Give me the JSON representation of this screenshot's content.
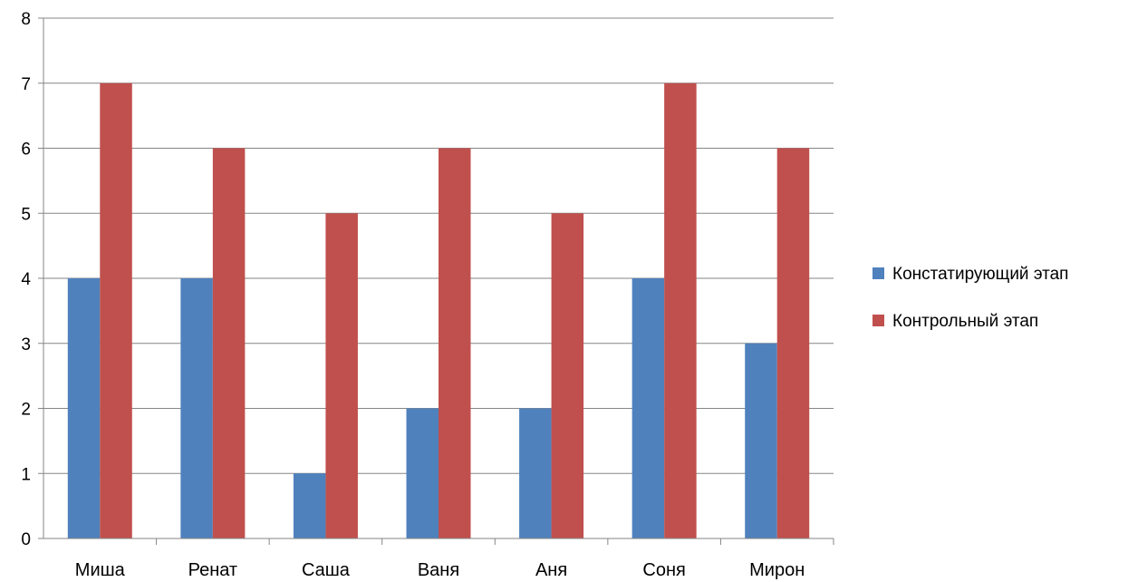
{
  "chart_data": {
    "type": "bar",
    "title": "",
    "xlabel": "",
    "ylabel": "",
    "categories": [
      "Миша",
      "Ренат",
      "Саша",
      "Ваня",
      "Аня",
      "Соня",
      "Мирон"
    ],
    "series": [
      {
        "name": "Констатирующий этап",
        "color": "#4F81BD",
        "values": [
          4,
          4,
          1,
          2,
          2,
          4,
          3
        ]
      },
      {
        "name": "Контрольный этап",
        "color": "#C0504D",
        "values": [
          7,
          6,
          5,
          6,
          5,
          7,
          6
        ]
      }
    ],
    "ylim": [
      0,
      8
    ],
    "yticks": [
      "0",
      "1",
      "2",
      "3",
      "4",
      "5",
      "6",
      "7",
      "8"
    ],
    "grid": true,
    "legend_position": "right"
  }
}
